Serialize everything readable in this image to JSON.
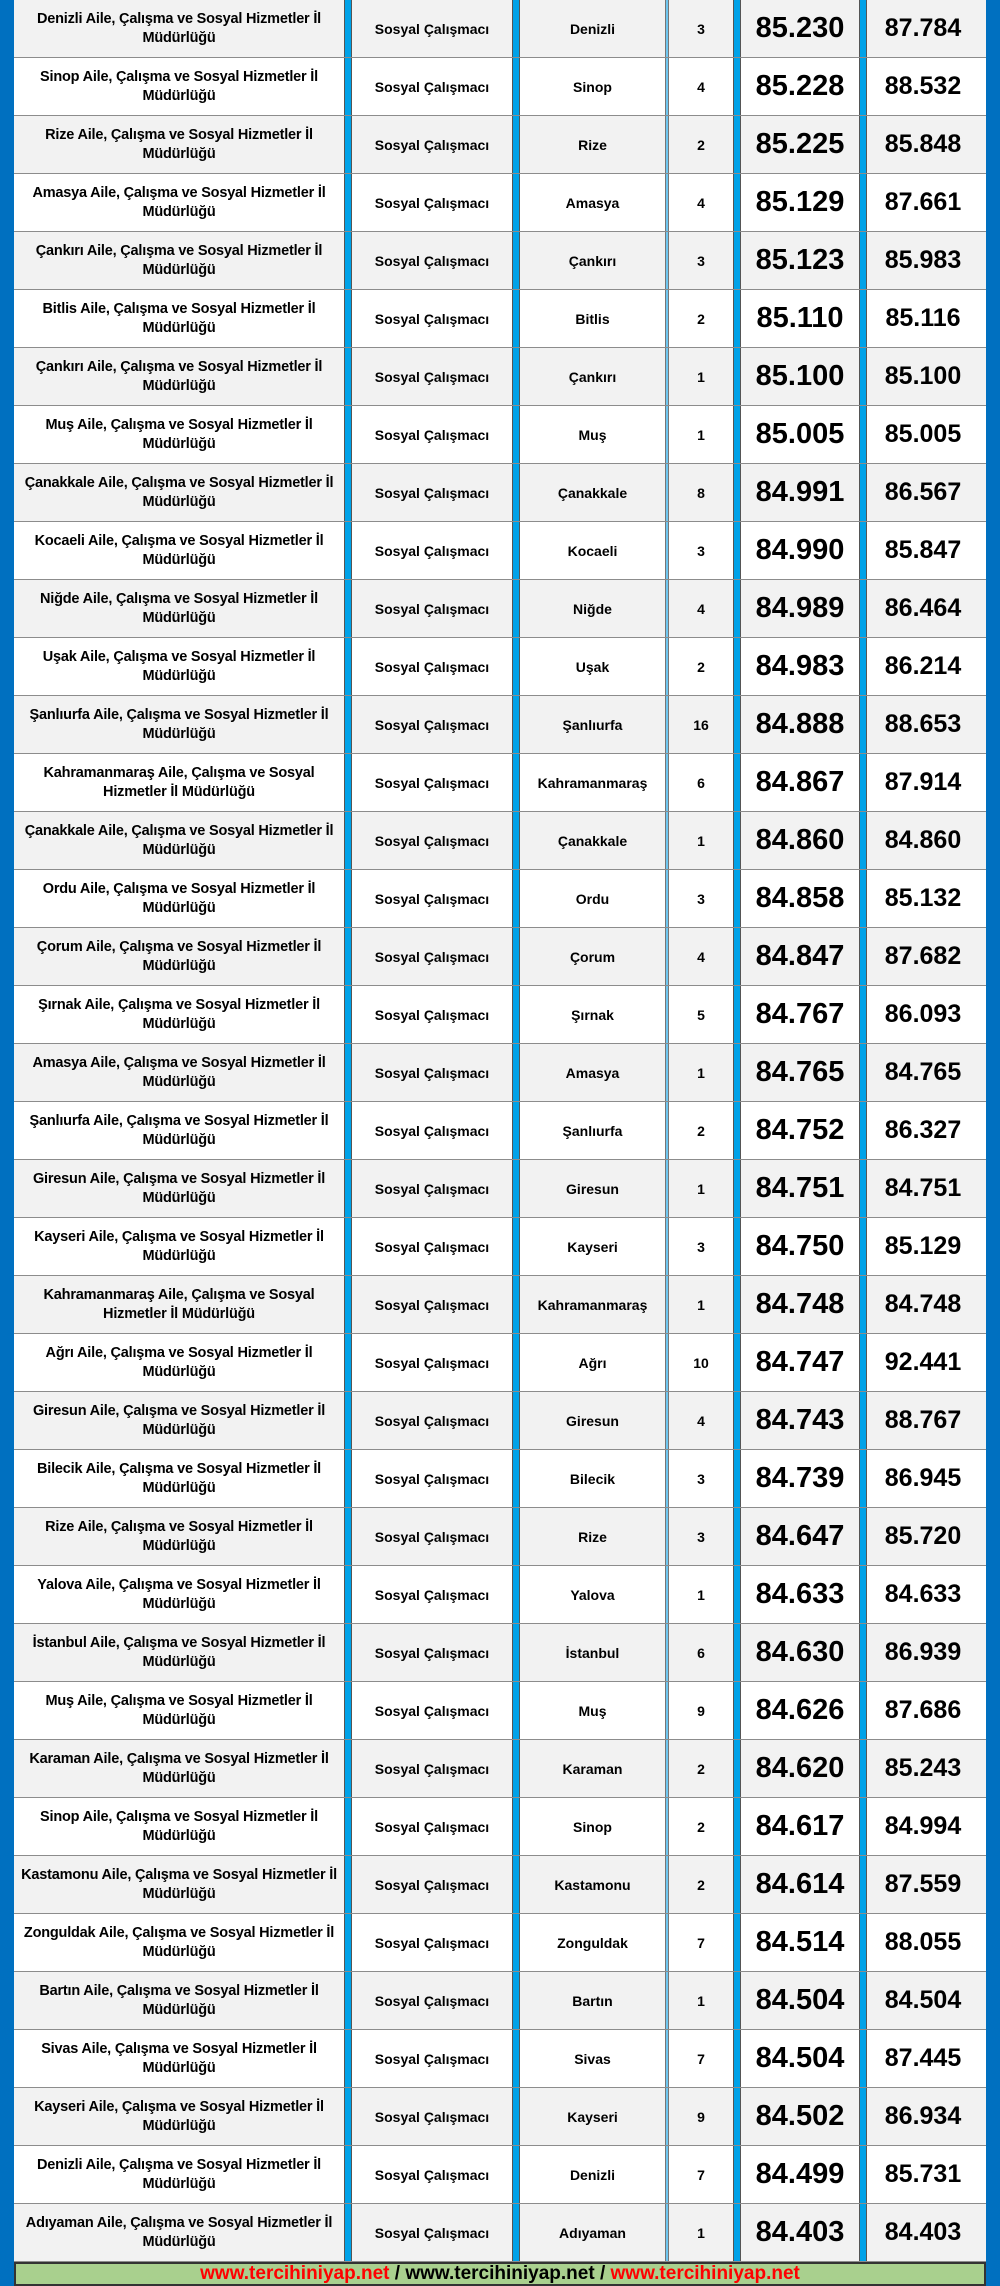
{
  "rows": [
    {
      "institution": "Denizli Aile, Çalışma ve Sosyal Hizmetler İl Müdürlüğü",
      "title": "Sosyal Çalışmacı",
      "city": "Denizli",
      "quota": "3",
      "min_score": "85.230",
      "max_score": "87.784"
    },
    {
      "institution": "Sinop Aile, Çalışma ve Sosyal Hizmetler İl Müdürlüğü",
      "title": "Sosyal Çalışmacı",
      "city": "Sinop",
      "quota": "4",
      "min_score": "85.228",
      "max_score": "88.532"
    },
    {
      "institution": "Rize Aile, Çalışma ve Sosyal Hizmetler İl Müdürlüğü",
      "title": "Sosyal Çalışmacı",
      "city": "Rize",
      "quota": "2",
      "min_score": "85.225",
      "max_score": "85.848"
    },
    {
      "institution": "Amasya Aile, Çalışma ve Sosyal Hizmetler İl Müdürlüğü",
      "title": "Sosyal Çalışmacı",
      "city": "Amasya",
      "quota": "4",
      "min_score": "85.129",
      "max_score": "87.661"
    },
    {
      "institution": "Çankırı Aile, Çalışma ve Sosyal Hizmetler İl Müdürlüğü",
      "title": "Sosyal Çalışmacı",
      "city": "Çankırı",
      "quota": "3",
      "min_score": "85.123",
      "max_score": "85.983"
    },
    {
      "institution": "Bitlis Aile, Çalışma ve Sosyal Hizmetler İl Müdürlüğü",
      "title": "Sosyal Çalışmacı",
      "city": "Bitlis",
      "quota": "2",
      "min_score": "85.110",
      "max_score": "85.116"
    },
    {
      "institution": "Çankırı Aile, Çalışma ve Sosyal Hizmetler İl Müdürlüğü",
      "title": "Sosyal Çalışmacı",
      "city": "Çankırı",
      "quota": "1",
      "min_score": "85.100",
      "max_score": "85.100"
    },
    {
      "institution": "Muş Aile, Çalışma ve Sosyal Hizmetler İl Müdürlüğü",
      "title": "Sosyal Çalışmacı",
      "city": "Muş",
      "quota": "1",
      "min_score": "85.005",
      "max_score": "85.005"
    },
    {
      "institution": "Çanakkale Aile, Çalışma ve Sosyal Hizmetler İl Müdürlüğü",
      "title": "Sosyal Çalışmacı",
      "city": "Çanakkale",
      "quota": "8",
      "min_score": "84.991",
      "max_score": "86.567"
    },
    {
      "institution": "Kocaeli Aile, Çalışma ve Sosyal Hizmetler İl Müdürlüğü",
      "title": "Sosyal Çalışmacı",
      "city": "Kocaeli",
      "quota": "3",
      "min_score": "84.990",
      "max_score": "85.847"
    },
    {
      "institution": "Niğde Aile, Çalışma ve Sosyal Hizmetler İl Müdürlüğü",
      "title": "Sosyal Çalışmacı",
      "city": "Niğde",
      "quota": "4",
      "min_score": "84.989",
      "max_score": "86.464"
    },
    {
      "institution": "Uşak Aile, Çalışma ve Sosyal Hizmetler İl Müdürlüğü",
      "title": "Sosyal Çalışmacı",
      "city": "Uşak",
      "quota": "2",
      "min_score": "84.983",
      "max_score": "86.214"
    },
    {
      "institution": "Şanlıurfa Aile, Çalışma ve Sosyal Hizmetler İl Müdürlüğü",
      "title": "Sosyal Çalışmacı",
      "city": "Şanlıurfa",
      "quota": "16",
      "min_score": "84.888",
      "max_score": "88.653"
    },
    {
      "institution": "Kahramanmaraş Aile, Çalışma ve Sosyal Hizmetler İl Müdürlüğü",
      "title": "Sosyal Çalışmacı",
      "city": "Kahramanmaraş",
      "quota": "6",
      "min_score": "84.867",
      "max_score": "87.914"
    },
    {
      "institution": "Çanakkale Aile, Çalışma ve Sosyal Hizmetler İl Müdürlüğü",
      "title": "Sosyal Çalışmacı",
      "city": "Çanakkale",
      "quota": "1",
      "min_score": "84.860",
      "max_score": "84.860"
    },
    {
      "institution": "Ordu Aile, Çalışma ve Sosyal Hizmetler İl Müdürlüğü",
      "title": "Sosyal Çalışmacı",
      "city": "Ordu",
      "quota": "3",
      "min_score": "84.858",
      "max_score": "85.132"
    },
    {
      "institution": "Çorum Aile, Çalışma ve Sosyal Hizmetler İl Müdürlüğü",
      "title": "Sosyal Çalışmacı",
      "city": "Çorum",
      "quota": "4",
      "min_score": "84.847",
      "max_score": "87.682"
    },
    {
      "institution": "Şırnak Aile, Çalışma ve Sosyal Hizmetler İl Müdürlüğü",
      "title": "Sosyal Çalışmacı",
      "city": "Şırnak",
      "quota": "5",
      "min_score": "84.767",
      "max_score": "86.093"
    },
    {
      "institution": "Amasya Aile, Çalışma ve Sosyal Hizmetler İl Müdürlüğü",
      "title": "Sosyal Çalışmacı",
      "city": "Amasya",
      "quota": "1",
      "min_score": "84.765",
      "max_score": "84.765"
    },
    {
      "institution": "Şanlıurfa Aile, Çalışma ve Sosyal Hizmetler İl Müdürlüğü",
      "title": "Sosyal Çalışmacı",
      "city": "Şanlıurfa",
      "quota": "2",
      "min_score": "84.752",
      "max_score": "86.327"
    },
    {
      "institution": "Giresun Aile, Çalışma ve Sosyal Hizmetler İl Müdürlüğü",
      "title": "Sosyal Çalışmacı",
      "city": "Giresun",
      "quota": "1",
      "min_score": "84.751",
      "max_score": "84.751"
    },
    {
      "institution": "Kayseri Aile, Çalışma ve Sosyal Hizmetler İl Müdürlüğü",
      "title": "Sosyal Çalışmacı",
      "city": "Kayseri",
      "quota": "3",
      "min_score": "84.750",
      "max_score": "85.129"
    },
    {
      "institution": "Kahramanmaraş Aile, Çalışma ve Sosyal Hizmetler İl Müdürlüğü",
      "title": "Sosyal Çalışmacı",
      "city": "Kahramanmaraş",
      "quota": "1",
      "min_score": "84.748",
      "max_score": "84.748"
    },
    {
      "institution": "Ağrı Aile, Çalışma ve Sosyal Hizmetler İl Müdürlüğü",
      "title": "Sosyal Çalışmacı",
      "city": "Ağrı",
      "quota": "10",
      "min_score": "84.747",
      "max_score": "92.441"
    },
    {
      "institution": "Giresun Aile, Çalışma ve Sosyal Hizmetler İl Müdürlüğü",
      "title": "Sosyal Çalışmacı",
      "city": "Giresun",
      "quota": "4",
      "min_score": "84.743",
      "max_score": "88.767"
    },
    {
      "institution": "Bilecik Aile, Çalışma ve Sosyal Hizmetler İl Müdürlüğü",
      "title": "Sosyal Çalışmacı",
      "city": "Bilecik",
      "quota": "3",
      "min_score": "84.739",
      "max_score": "86.945"
    },
    {
      "institution": "Rize Aile, Çalışma ve Sosyal Hizmetler İl Müdürlüğü",
      "title": "Sosyal Çalışmacı",
      "city": "Rize",
      "quota": "3",
      "min_score": "84.647",
      "max_score": "85.720"
    },
    {
      "institution": "Yalova Aile, Çalışma ve Sosyal Hizmetler İl Müdürlüğü",
      "title": "Sosyal Çalışmacı",
      "city": "Yalova",
      "quota": "1",
      "min_score": "84.633",
      "max_score": "84.633"
    },
    {
      "institution": "İstanbul Aile, Çalışma ve Sosyal Hizmetler İl Müdürlüğü",
      "title": "Sosyal Çalışmacı",
      "city": "İstanbul",
      "quota": "6",
      "min_score": "84.630",
      "max_score": "86.939"
    },
    {
      "institution": "Muş Aile, Çalışma ve Sosyal Hizmetler İl Müdürlüğü",
      "title": "Sosyal Çalışmacı",
      "city": "Muş",
      "quota": "9",
      "min_score": "84.626",
      "max_score": "87.686"
    },
    {
      "institution": "Karaman Aile, Çalışma ve Sosyal Hizmetler İl Müdürlüğü",
      "title": "Sosyal Çalışmacı",
      "city": "Karaman",
      "quota": "2",
      "min_score": "84.620",
      "max_score": "85.243"
    },
    {
      "institution": "Sinop Aile, Çalışma ve Sosyal Hizmetler İl Müdürlüğü",
      "title": "Sosyal Çalışmacı",
      "city": "Sinop",
      "quota": "2",
      "min_score": "84.617",
      "max_score": "84.994"
    },
    {
      "institution": "Kastamonu Aile, Çalışma ve Sosyal Hizmetler İl Müdürlüğü",
      "title": "Sosyal Çalışmacı",
      "city": "Kastamonu",
      "quota": "2",
      "min_score": "84.614",
      "max_score": "87.559"
    },
    {
      "institution": "Zonguldak Aile, Çalışma ve Sosyal Hizmetler İl Müdürlüğü",
      "title": "Sosyal Çalışmacı",
      "city": "Zonguldak",
      "quota": "7",
      "min_score": "84.514",
      "max_score": "88.055"
    },
    {
      "institution": "Bartın Aile, Çalışma ve Sosyal Hizmetler İl Müdürlüğü",
      "title": "Sosyal Çalışmacı",
      "city": "Bartın",
      "quota": "1",
      "min_score": "84.504",
      "max_score": "84.504"
    },
    {
      "institution": "Sivas Aile, Çalışma ve Sosyal Hizmetler İl Müdürlüğü",
      "title": "Sosyal Çalışmacı",
      "city": "Sivas",
      "quota": "7",
      "min_score": "84.504",
      "max_score": "87.445"
    },
    {
      "institution": "Kayseri Aile, Çalışma ve Sosyal Hizmetler İl Müdürlüğü",
      "title": "Sosyal Çalışmacı",
      "city": "Kayseri",
      "quota": "9",
      "min_score": "84.502",
      "max_score": "86.934"
    },
    {
      "institution": "Denizli Aile, Çalışma ve Sosyal Hizmetler İl Müdürlüğü",
      "title": "Sosyal Çalışmacı",
      "city": "Denizli",
      "quota": "7",
      "min_score": "84.499",
      "max_score": "85.731"
    },
    {
      "institution": "Adıyaman Aile, Çalışma ve Sosyal Hizmetler İl Müdürlüğü",
      "title": "Sosyal Çalışmacı",
      "city": "Adıyaman",
      "quota": "1",
      "min_score": "84.403",
      "max_score": "84.403"
    }
  ],
  "footer": {
    "link_1": "www.tercihiniyap.net",
    "separator_1": " / ",
    "link_2": "www.tercihiniyap.net",
    "separator_2": " / ",
    "link_3": "www.tercihiniyap.net"
  },
  "colors": {
    "frame": "#0070c0",
    "separator": "#00a2e8",
    "footer_bg": "#a9d08e",
    "link_red": "#ff0000"
  }
}
